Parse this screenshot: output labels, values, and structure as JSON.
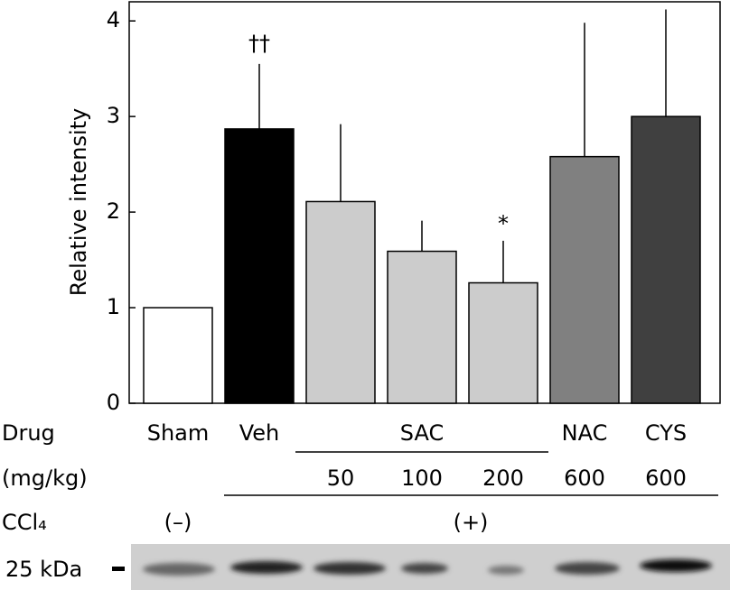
{
  "chart_data": {
    "type": "bar",
    "y_label": "Relative intensity",
    "categories": [
      "Sham",
      "Veh",
      null,
      null,
      null,
      "NAC",
      "CYS"
    ],
    "values": [
      1.0,
      2.87,
      2.11,
      1.59,
      1.26,
      2.58,
      3.0
    ],
    "errors": [
      null,
      0.68,
      0.81,
      0.32,
      0.44,
      1.4,
      1.12
    ],
    "colors": [
      "#ffffff",
      "#000000",
      "#cccccc",
      "#cccccc",
      "#cccccc",
      "#808080",
      "#404040"
    ],
    "ylim": [
      0,
      4.2
    ],
    "yticks": [
      0,
      1,
      2,
      3,
      4
    ],
    "grid": false,
    "annotations": [
      "††",
      "*"
    ],
    "drug_row_label": "Drug",
    "group_label": "SAC",
    "dose_row_label": "(mg/kg)",
    "doses": [
      null,
      null,
      "50",
      "100",
      "200",
      "600",
      "600"
    ],
    "ccl4_row_label": "CCl₄",
    "ccl4_labels": [
      "(–)",
      "(+)"
    ],
    "blot_marker_label": "25 kDa"
  }
}
